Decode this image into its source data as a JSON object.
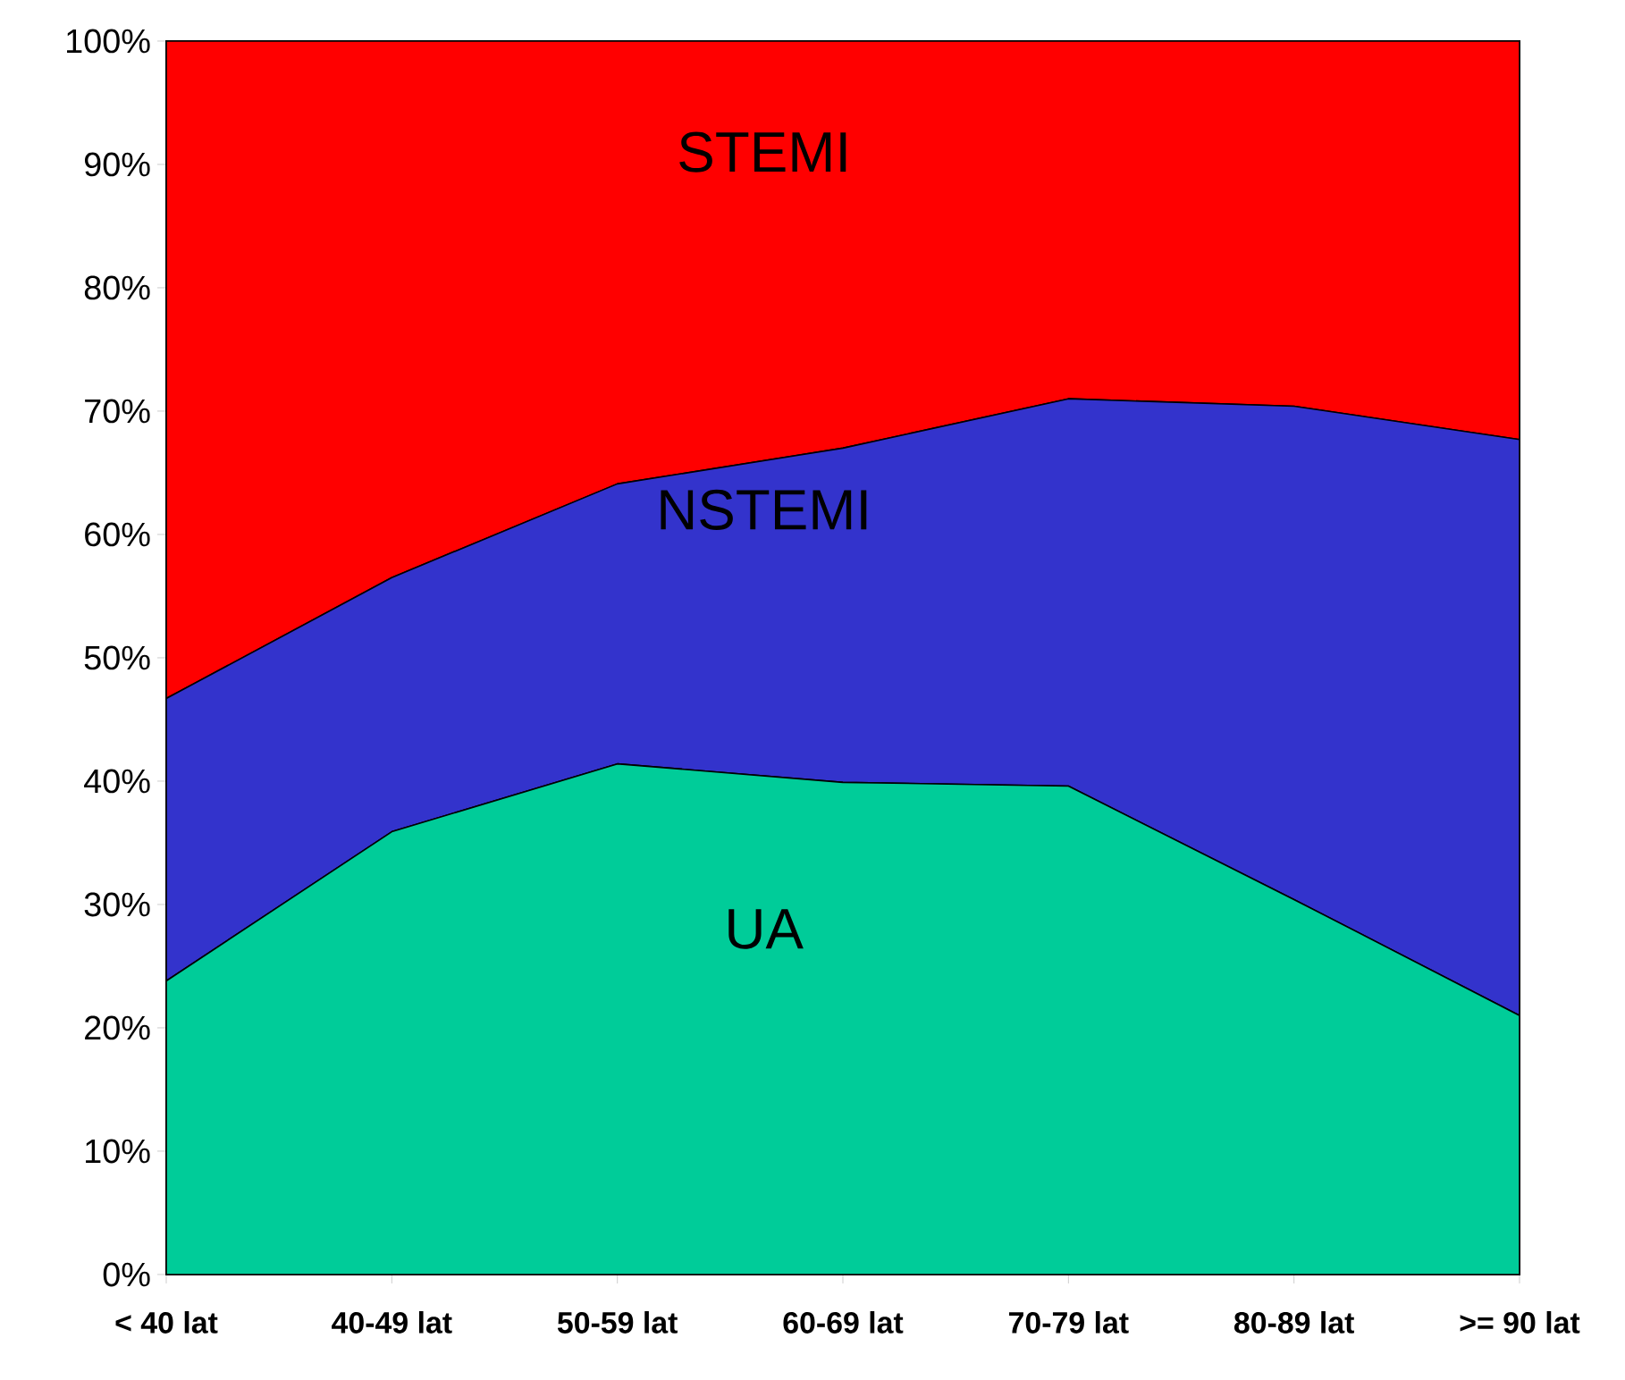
{
  "chart_data": {
    "type": "area",
    "stacked": true,
    "categories": [
      "< 40 lat",
      "40-49 lat",
      "50-59 lat",
      "60-69 lat",
      "70-79 lat",
      "80-89 lat",
      ">= 90 lat"
    ],
    "series": [
      {
        "name": "UA",
        "color": "#00cc99",
        "values": [
          23.8,
          35.9,
          41.4,
          39.9,
          39.6,
          30.4,
          21.0
        ]
      },
      {
        "name": "NSTEMI",
        "color": "#3333cc",
        "values": [
          22.9,
          20.6,
          22.7,
          27.1,
          31.4,
          40.0,
          46.7
        ]
      },
      {
        "name": "STEMI",
        "color": "#ff0000",
        "values": [
          53.3,
          43.5,
          35.9,
          33.0,
          29.0,
          29.6,
          32.3
        ]
      }
    ],
    "ylim": [
      0,
      100
    ],
    "yticks": [
      {
        "value": 0,
        "label": "0%"
      },
      {
        "value": 10,
        "label": "10%"
      },
      {
        "value": 20,
        "label": "20%"
      },
      {
        "value": 30,
        "label": "30%"
      },
      {
        "value": 40,
        "label": "40%"
      },
      {
        "value": 50,
        "label": "50%"
      },
      {
        "value": 60,
        "label": "60%"
      },
      {
        "value": 70,
        "label": "70%"
      },
      {
        "value": 80,
        "label": "80%"
      },
      {
        "value": 90,
        "label": "90%"
      },
      {
        "value": 100,
        "label": "100%"
      }
    ]
  }
}
